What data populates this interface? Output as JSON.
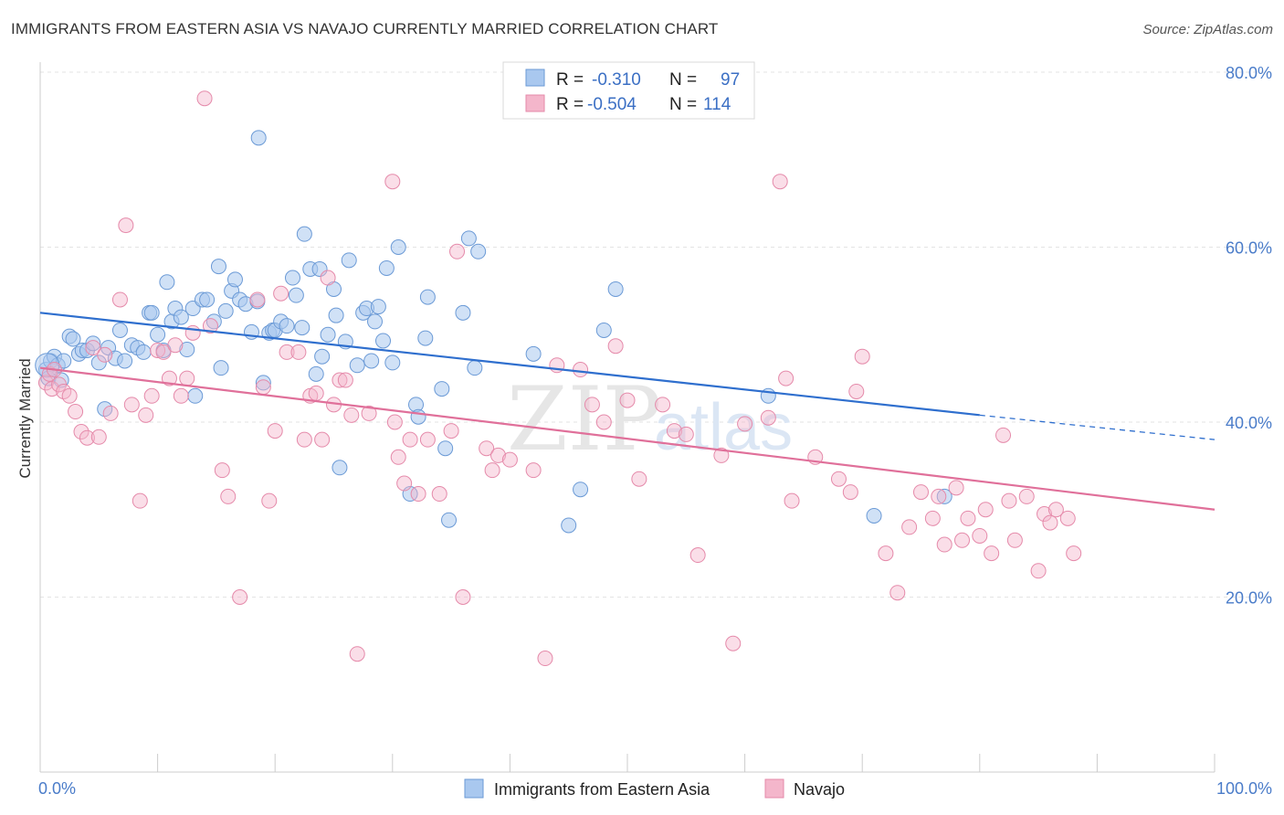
{
  "title": "IMMIGRANTS FROM EASTERN ASIA VS NAVAJO CURRENTLY MARRIED CORRELATION CHART",
  "source": "Source: ZipAtlas.com",
  "watermark": {
    "zip": "ZIP",
    "atlas": "atlas"
  },
  "colors": {
    "blue_fill": "#a9c8ef",
    "blue_stroke": "#6b9ad6",
    "blue_line": "#2f6fce",
    "pink_fill": "#f4b6cb",
    "pink_stroke": "#e58aaa",
    "pink_line": "#e0709a",
    "axis_label": "#4a7cc9",
    "grid": "#e3e3e3"
  },
  "chart_data": {
    "type": "scatter",
    "ylabel": "Currently Married",
    "x_ticks": [
      "0.0%",
      "100.0%"
    ],
    "y_ticks": [
      "20.0%",
      "40.0%",
      "60.0%",
      "80.0%"
    ],
    "y_tick_values": [
      20,
      40,
      60,
      80
    ],
    "xlim": [
      0,
      100
    ],
    "ylim": [
      0,
      83
    ],
    "grid": true,
    "legend": {
      "placement": "top-center",
      "rows": [
        {
          "r_label": "R =",
          "r_value": "-0.310",
          "n_label": "N =",
          "n_value": "97"
        },
        {
          "r_label": "R =",
          "r_value": "-0.504",
          "n_label": "N =",
          "n_value": "114"
        }
      ]
    },
    "series": [
      {
        "name": "Immigrants from Eastern Asia",
        "trend": {
          "x": [
            0,
            80
          ],
          "y": [
            52.5,
            40.8
          ],
          "dashed_to": [
            100,
            38.0
          ]
        },
        "points": [
          [
            0.5,
            46
          ],
          [
            0.7,
            45
          ],
          [
            0.9,
            47
          ],
          [
            1.2,
            47.5
          ],
          [
            1.5,
            46.5
          ],
          [
            1.8,
            44.8
          ],
          [
            2,
            47
          ],
          [
            2.5,
            49.8
          ],
          [
            2.8,
            49.5
          ],
          [
            3.3,
            47.8
          ],
          [
            3.6,
            48.2
          ],
          [
            4,
            48.2
          ],
          [
            4.5,
            49
          ],
          [
            5,
            46.8
          ],
          [
            5.5,
            41.5
          ],
          [
            5.8,
            48.5
          ],
          [
            6.4,
            47.3
          ],
          [
            6.8,
            50.5
          ],
          [
            7.2,
            47
          ],
          [
            7.8,
            48.8
          ],
          [
            8.3,
            48.5
          ],
          [
            8.8,
            48
          ],
          [
            9.3,
            52.5
          ],
          [
            9.5,
            52.5
          ],
          [
            10,
            50
          ],
          [
            10.5,
            48.2
          ],
          [
            10.8,
            56
          ],
          [
            11.2,
            51.5
          ],
          [
            11.5,
            53
          ],
          [
            12,
            52
          ],
          [
            12.5,
            48.3
          ],
          [
            13,
            53
          ],
          [
            13.2,
            43
          ],
          [
            13.8,
            54
          ],
          [
            14.2,
            54
          ],
          [
            14.8,
            51.5
          ],
          [
            15.2,
            57.8
          ],
          [
            15.4,
            46.2
          ],
          [
            15.8,
            52.7
          ],
          [
            16.3,
            55
          ],
          [
            16.6,
            56.3
          ],
          [
            17,
            54
          ],
          [
            17.5,
            53.5
          ],
          [
            18,
            50.3
          ],
          [
            18.5,
            53.8
          ],
          [
            18.6,
            72.5
          ],
          [
            19,
            44.5
          ],
          [
            19.5,
            50.2
          ],
          [
            19.8,
            50.5
          ],
          [
            20,
            50.5
          ],
          [
            20.5,
            51.5
          ],
          [
            21,
            51
          ],
          [
            21.5,
            56.5
          ],
          [
            21.8,
            54.5
          ],
          [
            22.3,
            50.8
          ],
          [
            22.5,
            61.5
          ],
          [
            23,
            57.5
          ],
          [
            23.5,
            45.5
          ],
          [
            23.8,
            57.5
          ],
          [
            24,
            47.5
          ],
          [
            24.5,
            50
          ],
          [
            25,
            55.2
          ],
          [
            25.2,
            52.2
          ],
          [
            25.5,
            34.8
          ],
          [
            26,
            49.2
          ],
          [
            26.3,
            58.5
          ],
          [
            27,
            46.5
          ],
          [
            27.5,
            52.5
          ],
          [
            27.8,
            53
          ],
          [
            28.2,
            47
          ],
          [
            28.5,
            51.5
          ],
          [
            28.8,
            53.2
          ],
          [
            29.2,
            49.3
          ],
          [
            29.5,
            57.6
          ],
          [
            30,
            46.8
          ],
          [
            30.5,
            60
          ],
          [
            31.5,
            31.8
          ],
          [
            32,
            42
          ],
          [
            32.2,
            40.6
          ],
          [
            32.8,
            49.6
          ],
          [
            33,
            54.3
          ],
          [
            34.2,
            43.8
          ],
          [
            34.5,
            37
          ],
          [
            34.8,
            28.8
          ],
          [
            36,
            52.5
          ],
          [
            36.5,
            61
          ],
          [
            37,
            46.2
          ],
          [
            37.3,
            59.5
          ],
          [
            42,
            47.8
          ],
          [
            45,
            28.2
          ],
          [
            46,
            32.3
          ],
          [
            48,
            50.5
          ],
          [
            49,
            55.2
          ],
          [
            62,
            43
          ],
          [
            71,
            29.3
          ],
          [
            77,
            31.5
          ]
        ]
      },
      {
        "name": "Navajo",
        "trend": {
          "x": [
            0,
            100
          ],
          "y": [
            46.2,
            30.0
          ]
        },
        "points": [
          [
            0.5,
            44.5
          ],
          [
            0.8,
            45.5
          ],
          [
            1,
            43.8
          ],
          [
            1.2,
            46
          ],
          [
            1.6,
            44.3
          ],
          [
            2,
            43.5
          ],
          [
            2.5,
            43
          ],
          [
            3,
            41.2
          ],
          [
            3.5,
            38.9
          ],
          [
            4,
            38.2
          ],
          [
            4.5,
            48.5
          ],
          [
            5,
            38.3
          ],
          [
            5.5,
            47.7
          ],
          [
            6,
            41
          ],
          [
            6.8,
            54
          ],
          [
            7.3,
            62.5
          ],
          [
            7.8,
            42
          ],
          [
            8.5,
            31
          ],
          [
            9,
            40.8
          ],
          [
            9.5,
            43
          ],
          [
            10,
            48.2
          ],
          [
            10.5,
            48
          ],
          [
            11,
            45
          ],
          [
            11.5,
            48.8
          ],
          [
            12,
            43
          ],
          [
            12.5,
            45
          ],
          [
            13,
            50.2
          ],
          [
            14,
            77
          ],
          [
            14.5,
            51
          ],
          [
            15.5,
            34.5
          ],
          [
            16,
            31.5
          ],
          [
            17,
            20
          ],
          [
            18.5,
            54
          ],
          [
            19,
            44
          ],
          [
            19.5,
            31
          ],
          [
            20,
            39
          ],
          [
            20.5,
            54.7
          ],
          [
            21,
            48
          ],
          [
            22,
            48
          ],
          [
            22.5,
            38
          ],
          [
            23,
            43
          ],
          [
            23.5,
            43.3
          ],
          [
            24,
            38
          ],
          [
            24.5,
            56.5
          ],
          [
            25,
            42
          ],
          [
            25.5,
            44.8
          ],
          [
            26,
            44.8
          ],
          [
            26.5,
            40.8
          ],
          [
            27,
            13.5
          ],
          [
            28,
            41
          ],
          [
            30,
            67.5
          ],
          [
            30.2,
            40
          ],
          [
            30.5,
            36
          ],
          [
            31,
            33
          ],
          [
            31.5,
            38
          ],
          [
            32.2,
            31.8
          ],
          [
            33,
            38
          ],
          [
            34,
            31.8
          ],
          [
            35,
            39
          ],
          [
            35.5,
            59.5
          ],
          [
            36,
            20
          ],
          [
            38,
            37
          ],
          [
            38.5,
            34.5
          ],
          [
            39,
            36.2
          ],
          [
            40,
            35.7
          ],
          [
            42,
            34.5
          ],
          [
            43,
            13
          ],
          [
            44,
            46.5
          ],
          [
            46,
            46
          ],
          [
            47,
            42
          ],
          [
            48,
            40
          ],
          [
            49,
            48.7
          ],
          [
            50,
            42.5
          ],
          [
            51,
            33.5
          ],
          [
            53,
            42
          ],
          [
            54,
            39
          ],
          [
            55,
            38.6
          ],
          [
            56,
            24.8
          ],
          [
            58,
            36.2
          ],
          [
            59,
            14.7
          ],
          [
            60,
            39.8
          ],
          [
            62,
            40.5
          ],
          [
            63,
            67.5
          ],
          [
            63.5,
            45
          ],
          [
            64,
            31
          ],
          [
            66,
            36
          ],
          [
            68,
            33.5
          ],
          [
            69,
            32
          ],
          [
            69.5,
            43.5
          ],
          [
            70,
            47.5
          ],
          [
            72,
            25
          ],
          [
            73,
            20.5
          ],
          [
            74,
            28
          ],
          [
            75,
            32
          ],
          [
            76,
            29
          ],
          [
            76.5,
            31.5
          ],
          [
            77,
            26
          ],
          [
            78,
            32.5
          ],
          [
            78.5,
            26.5
          ],
          [
            79,
            29
          ],
          [
            80,
            27
          ],
          [
            80.5,
            30
          ],
          [
            81,
            25
          ],
          [
            82,
            38.5
          ],
          [
            82.5,
            31
          ],
          [
            83,
            26.5
          ],
          [
            84,
            31.5
          ],
          [
            85,
            23
          ],
          [
            85.5,
            29.5
          ],
          [
            86,
            28.5
          ],
          [
            86.5,
            30
          ],
          [
            87.5,
            29
          ],
          [
            88,
            25
          ]
        ]
      }
    ]
  }
}
